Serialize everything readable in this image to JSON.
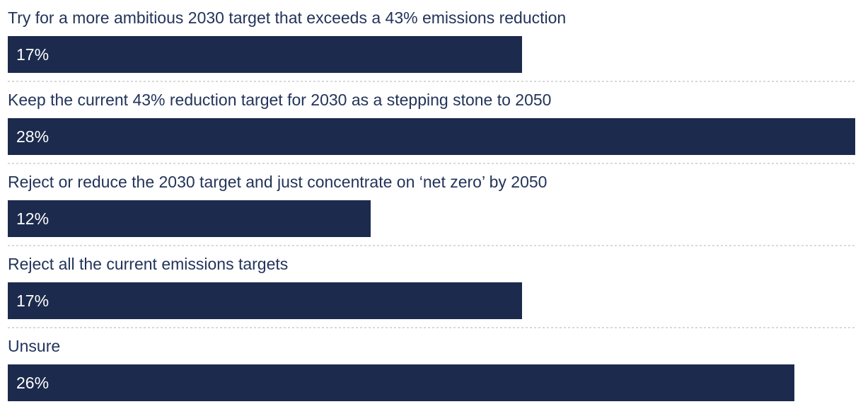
{
  "chart_data": {
    "type": "bar",
    "orientation": "horizontal",
    "title": "",
    "xlabel": "",
    "ylabel": "",
    "categories": [
      "Try for a more ambitious 2030 target that exceeds a 43% emissions reduction",
      "Keep the current 43% reduction target for 2030 as a stepping stone to 2050",
      "Reject or reduce the 2030 target and just concentrate on ‘net zero’ by 2050",
      "Reject all the current emissions targets",
      "Unsure"
    ],
    "values": [
      17,
      28,
      12,
      17,
      26
    ],
    "value_labels": [
      "17%",
      "28%",
      "12%",
      "17%",
      "26%"
    ],
    "xlim": [
      0,
      28
    ],
    "grid": false,
    "legend": false,
    "colors": {
      "bar": "#1c2a4d",
      "category_label": "#23345a",
      "value_label": "#ffffff",
      "separator": "#d9d9d9",
      "background": "#ffffff"
    }
  }
}
